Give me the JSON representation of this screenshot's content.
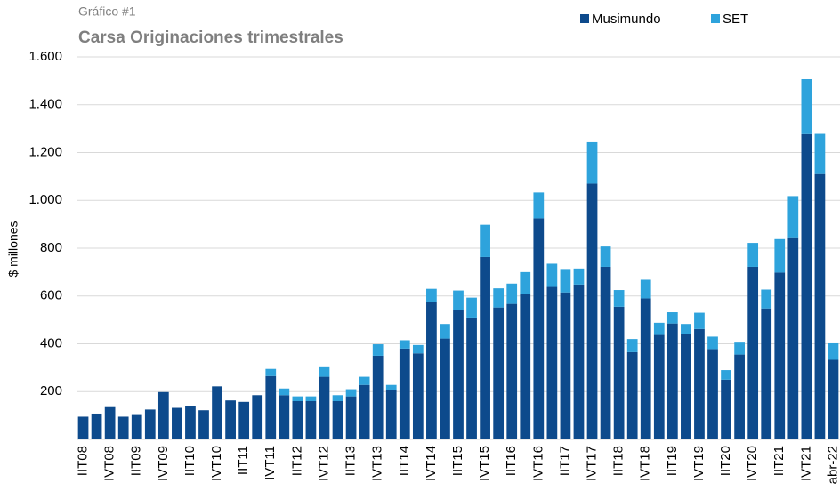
{
  "chart_data": {
    "type": "stacked_bar",
    "subtitle": "Gráfico #1",
    "title": "Carsa Originaciones trimestrales",
    "y_label": "$ millones",
    "categories": [
      "IIT08",
      null,
      "IVT08",
      null,
      "IIT09",
      null,
      "IVT09",
      null,
      "IIT10",
      null,
      "IVT10",
      null,
      "IIT11",
      null,
      "IVT11",
      null,
      "IIT12",
      null,
      "IVT12",
      null,
      "IIT13",
      null,
      "IVT13",
      null,
      "IIT14",
      null,
      "IVT14",
      null,
      "IIT15",
      null,
      "IVT15",
      null,
      "IIT16",
      null,
      "IVT16",
      null,
      "IIT17",
      null,
      "IVT17",
      null,
      "IIT18",
      null,
      "IVT18",
      null,
      "IIT19",
      null,
      "IVT19",
      null,
      "IIT20",
      null,
      "IVT20",
      null,
      "IIT21",
      null,
      "IVT21",
      null,
      "abr-22"
    ],
    "series": [
      {
        "name": "Musimundo",
        "color": "#0d4a8c",
        "values": [
          95,
          108,
          135,
          95,
          102,
          125,
          198,
          132,
          140,
          122,
          222,
          163,
          157,
          185,
          265,
          185,
          160,
          160,
          262,
          160,
          180,
          228,
          350,
          205,
          380,
          360,
          575,
          422,
          543,
          510,
          763,
          552,
          567,
          607,
          925,
          638,
          615,
          648,
          1070,
          722,
          555,
          365,
          590,
          437,
          485,
          440,
          462,
          378,
          250,
          355,
          722,
          548,
          698,
          842,
          1277,
          1110,
          333
        ]
      },
      {
        "name": "SET",
        "color": "#2ea3dc",
        "values": [
          0,
          0,
          0,
          0,
          0,
          0,
          0,
          0,
          0,
          0,
          0,
          0,
          0,
          0,
          30,
          28,
          20,
          20,
          40,
          25,
          30,
          34,
          48,
          23,
          35,
          35,
          55,
          61,
          80,
          83,
          135,
          80,
          85,
          93,
          108,
          97,
          98,
          67,
          173,
          85,
          70,
          55,
          78,
          51,
          47,
          43,
          68,
          52,
          40,
          50,
          100,
          79,
          140,
          176,
          230,
          168,
          69
        ]
      }
    ],
    "ylim": [
      0,
      1600
    ],
    "yticks": [
      200,
      400,
      600,
      800,
      {
        "value": 1000,
        "label": "1.000"
      },
      {
        "value": 1200,
        "label": "1.200"
      },
      {
        "value": 1400,
        "label": "1.400"
      },
      {
        "value": 1600,
        "label": "1.600"
      }
    ],
    "grid": true,
    "legend_position": "top-right"
  }
}
